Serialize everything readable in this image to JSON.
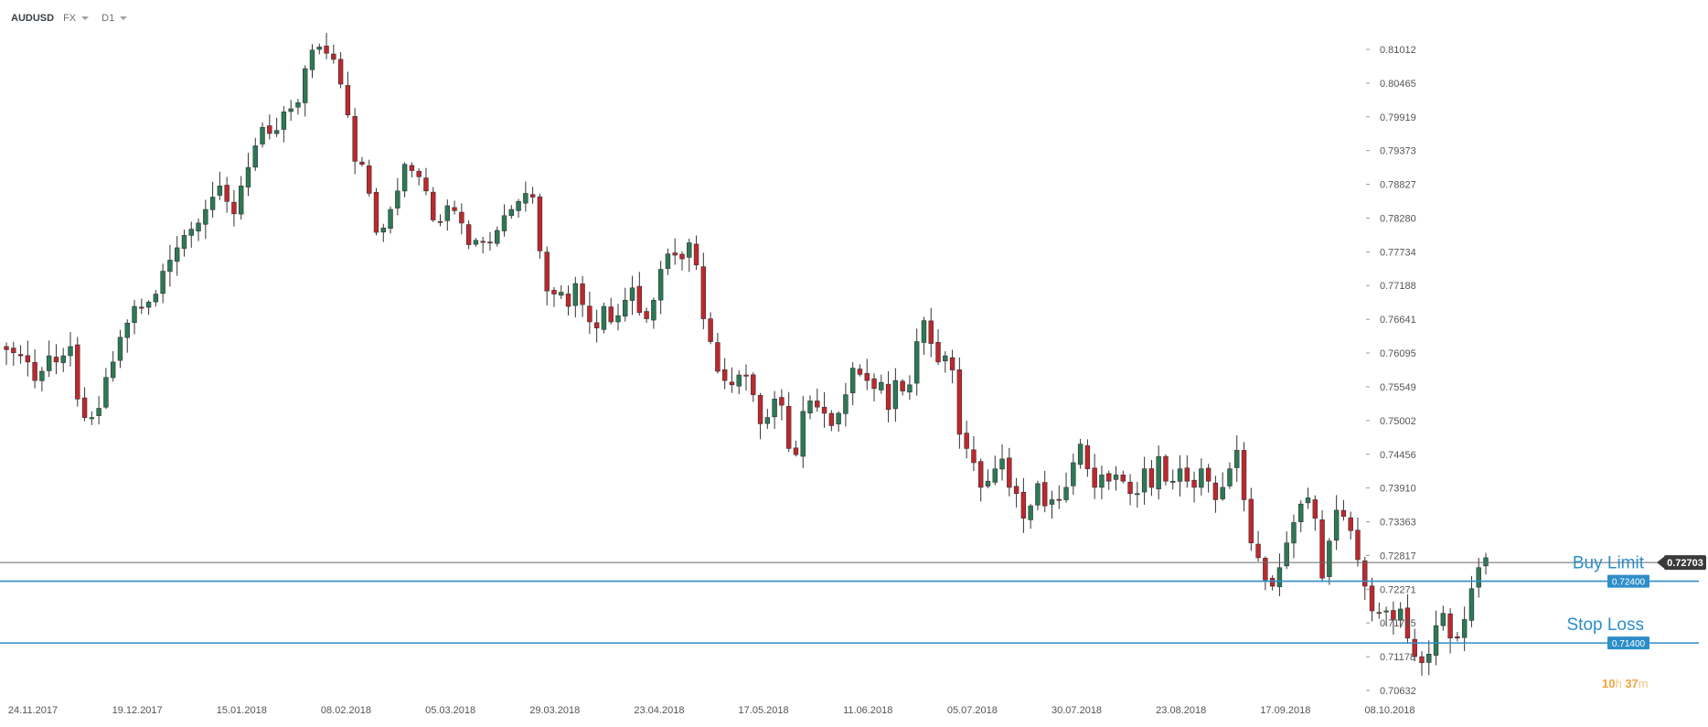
{
  "toolbar": {
    "symbol": "AUDUSD",
    "market": "FX",
    "timeframe": "D1"
  },
  "colors": {
    "up": "#2b7a55",
    "down": "#c0272d",
    "wick": "#333333",
    "order_line": "#2d8ec9",
    "price_line": "#666666",
    "label_bg": "#3a3a3a"
  },
  "chart_data": {
    "type": "candlestick",
    "y_ticks": [
      "0.81012",
      "0.80465",
      "0.79919",
      "0.79373",
      "0.78827",
      "0.78280",
      "0.77734",
      "0.77188",
      "0.76641",
      "0.76095",
      "0.75549",
      "0.75002",
      "0.74456",
      "0.73910",
      "0.73363",
      "0.72817",
      "0.72271",
      "0.71725",
      "0.71178",
      "0.70632"
    ],
    "x_ticks": [
      "24.11.2017",
      "19.12.2017",
      "15.01.2018",
      "08.02.2018",
      "05.03.2018",
      "29.03.2018",
      "23.04.2018",
      "17.05.2018",
      "11.06.2018",
      "05.07.2018",
      "30.07.2018",
      "23.08.2018",
      "17.09.2018",
      "08.10.2018"
    ],
    "ylim": [
      0.7063,
      0.8101
    ],
    "candles_close": [
      0.7615,
      0.761,
      0.7605,
      0.7595,
      0.7565,
      0.758,
      0.7605,
      0.7595,
      0.7605,
      0.762,
      0.7535,
      0.7505,
      0.7505,
      0.752,
      0.757,
      0.7595,
      0.7635,
      0.7658,
      0.7685,
      0.7682,
      0.7692,
      0.7705,
      0.7742,
      0.776,
      0.778,
      0.78,
      0.781,
      0.782,
      0.7842,
      0.7862,
      0.788,
      0.7855,
      0.7835,
      0.788,
      0.791,
      0.7945,
      0.7975,
      0.7965,
      0.797,
      0.8,
      0.8005,
      0.8015,
      0.807,
      0.81,
      0.8105,
      0.8095,
      0.8085,
      0.8045,
      0.7995,
      0.792,
      0.7915,
      0.7868,
      0.7805,
      0.7812,
      0.7842,
      0.7872,
      0.7915,
      0.7905,
      0.7895,
      0.7872,
      0.7825,
      0.7822,
      0.7848,
      0.784,
      0.782,
      0.7785,
      0.7792,
      0.779,
      0.7788,
      0.7808,
      0.7832,
      0.7842,
      0.7855,
      0.7868,
      0.7862,
      0.7775,
      0.771,
      0.7705,
      0.7708,
      0.7685,
      0.7722,
      0.7688,
      0.766,
      0.765,
      0.7685,
      0.766,
      0.767,
      0.7695,
      0.7715,
      0.7675,
      0.7665,
      0.7695,
      0.7745,
      0.777,
      0.7768,
      0.7762,
      0.7788,
      0.7752,
      0.7665,
      0.7628,
      0.758,
      0.7565,
      0.7558,
      0.7574,
      0.7572,
      0.7542,
      0.7495,
      0.7505,
      0.7535,
      0.7525,
      0.7455,
      0.7445,
      0.7515,
      0.7532,
      0.7522,
      0.7512,
      0.7492,
      0.7512,
      0.7542,
      0.7585,
      0.7575,
      0.7565,
      0.7552,
      0.7562,
      0.7518,
      0.7565,
      0.7548,
      0.7558,
      0.7628,
      0.7662,
      0.7625,
      0.7595,
      0.7605,
      0.7582,
      0.7478,
      0.7455,
      0.7432,
      0.7392,
      0.7402,
      0.7422,
      0.7438,
      0.7392,
      0.7382,
      0.7342,
      0.7362,
      0.7398,
      0.7362,
      0.7372,
      0.7372,
      0.7392,
      0.7432,
      0.7462,
      0.7422,
      0.7392,
      0.7412,
      0.7402,
      0.7412,
      0.7402,
      0.7382,
      0.7382,
      0.7422,
      0.7392,
      0.7442,
      0.7402,
      0.7402,
      0.7422,
      0.7402,
      0.7392,
      0.7422,
      0.7402,
      0.7372,
      0.7392,
      0.7422,
      0.7452,
      0.7372,
      0.7302,
      0.7278,
      0.7242,
      0.7232,
      0.7262,
      0.7302,
      0.7335,
      0.7365,
      0.7375,
      0.7342,
      0.7245,
      0.7305,
      0.7355,
      0.7345,
      0.7322,
      0.7275,
      0.7232,
      0.7192,
      0.7188,
      0.7192,
      0.7178,
      0.7195,
      0.7148,
      0.7118,
      0.7108,
      0.7122,
      0.7168,
      0.7188,
      0.7148,
      0.7148,
      0.7178,
      0.7228,
      0.7262,
      0.7278
    ],
    "indicators": {
      "current_price": "0.72703",
      "buy_limit": {
        "label": "Buy Limit",
        "value": "0.72400"
      },
      "stop_loss": {
        "label": "Stop Loss",
        "value": "0.71400"
      }
    },
    "countdown": {
      "hours": "10",
      "hours_unit": "h",
      "minutes": "37",
      "minutes_unit": "m"
    }
  }
}
